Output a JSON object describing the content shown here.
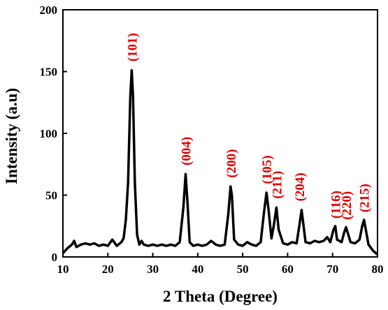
{
  "chart_data": {
    "type": "line",
    "title": "",
    "xlabel": "2 Theta (Degree)",
    "ylabel": "Intensity (a.u)",
    "xlim": [
      10,
      80
    ],
    "ylim": [
      0,
      200
    ],
    "xticks": [
      10,
      20,
      30,
      40,
      50,
      60,
      70,
      80
    ],
    "yticks": [
      0,
      50,
      100,
      150,
      200
    ],
    "grid": false,
    "legend": "none",
    "line_color": "#000000",
    "annotation_color": "#e00000",
    "series": [
      {
        "x": [
          10,
          11,
          12,
          12.5,
          13,
          14,
          15,
          16,
          17,
          18,
          19,
          20,
          21,
          22,
          23,
          23.5,
          24,
          24.5,
          25,
          25.3,
          25.6,
          26,
          26.5,
          27,
          27.5,
          28,
          29,
          30,
          31,
          32,
          33,
          34,
          35,
          36,
          36.8,
          37.3,
          37.7,
          38.2,
          39,
          40,
          41,
          42,
          43,
          44,
          45,
          46,
          46.8,
          47.3,
          47.6,
          48.1,
          49,
          50,
          51,
          52,
          53,
          54,
          54.7,
          55.3,
          55.7,
          56.4,
          56.9,
          57.5,
          58,
          59,
          60,
          61,
          62,
          62.6,
          63.1,
          64,
          65,
          66,
          67,
          68,
          68.8,
          69.5,
          70.2,
          70.6,
          71,
          72,
          72.6,
          73,
          73.5,
          74,
          75,
          76,
          76.6,
          77,
          77.5,
          78,
          79,
          80
        ],
        "y": [
          3,
          7,
          10,
          13,
          8,
          10,
          11,
          10,
          11,
          9,
          10,
          9,
          14,
          9,
          12,
          15,
          30,
          60,
          130,
          151,
          130,
          60,
          18,
          10,
          13,
          10,
          9,
          10,
          9,
          10,
          9,
          10,
          9,
          12,
          40,
          67,
          45,
          12,
          9,
          10,
          9,
          10,
          13,
          10,
          9,
          10,
          35,
          57,
          50,
          14,
          10,
          9,
          12,
          10,
          9,
          12,
          35,
          52,
          40,
          15,
          25,
          40,
          22,
          11,
          10,
          12,
          11,
          25,
          38,
          12,
          11,
          13,
          12,
          13,
          16,
          12,
          22,
          25,
          14,
          12,
          20,
          24,
          18,
          12,
          11,
          14,
          25,
          30,
          20,
          10,
          5,
          2
        ]
      }
    ],
    "annotations": [
      {
        "label": "(101)",
        "x": 25.3,
        "y": 158
      },
      {
        "label": "(004)",
        "x": 37.3,
        "y": 74
      },
      {
        "label": "(200)",
        "x": 47.3,
        "y": 64
      },
      {
        "label": "(105)",
        "x": 55.3,
        "y": 59
      },
      {
        "label": "(211)",
        "x": 57.5,
        "y": 47
      },
      {
        "label": "(204)",
        "x": 62.6,
        "y": 45
      },
      {
        "label": "(116)",
        "x": 70.6,
        "y": 31
      },
      {
        "label": "(220)",
        "x": 73.0,
        "y": 30
      },
      {
        "label": "(215)",
        "x": 77.0,
        "y": 36
      }
    ]
  }
}
